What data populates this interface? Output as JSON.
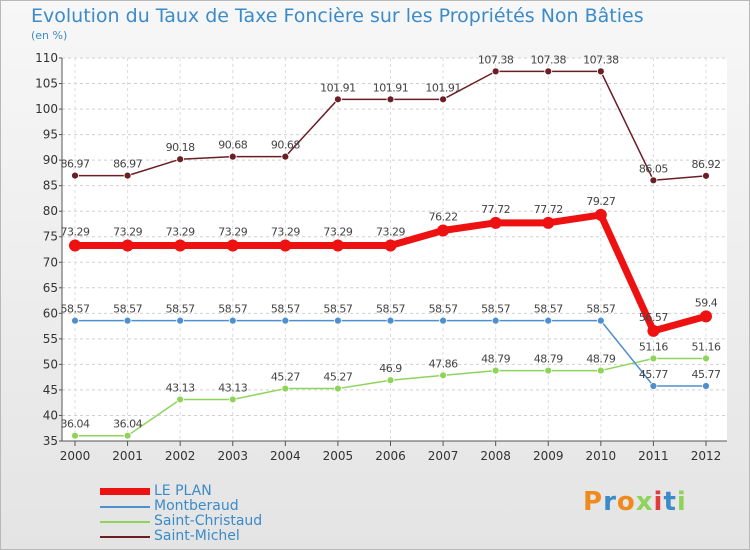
{
  "title": "Evolution du Taux de Taxe Foncière sur les Propriétés Non Bâties",
  "unit_label": "(en %)",
  "logo_text": "Proxiti",
  "chart_data": {
    "type": "line",
    "title": "Evolution du Taux de Taxe Foncière sur les Propriétés Non Bâties",
    "ylabel": "(en %)",
    "xlabel": "",
    "ylim": [
      35,
      110
    ],
    "yticks": [
      "35",
      "40",
      "45",
      "50",
      "55",
      "60",
      "65",
      "70",
      "75",
      "80",
      "85",
      "90",
      "95",
      "100",
      "105",
      "110"
    ],
    "x": [
      "2000",
      "2001",
      "2002",
      "2003",
      "2004",
      "2005",
      "2006",
      "2007",
      "2008",
      "2009",
      "2010",
      "2011",
      "2012"
    ],
    "grid": true,
    "legend_position": "bottom-left",
    "series": [
      {
        "name": "LE PLAN",
        "color": "#ee1111",
        "values": [
          73.29,
          73.29,
          73.29,
          73.29,
          73.29,
          73.29,
          73.29,
          76.22,
          77.72,
          77.72,
          79.27,
          56.57,
          59.4
        ],
        "labels": [
          "73.29",
          "73.29",
          "73.29",
          "73.29",
          "73.29",
          "73.29",
          "73.29",
          "76.22",
          "77.72",
          "77.72",
          "79.27",
          "56.57",
          "59.4"
        ]
      },
      {
        "name": "Montberaud",
        "color": "#4d8fcf",
        "values": [
          58.57,
          58.57,
          58.57,
          58.57,
          58.57,
          58.57,
          58.57,
          58.57,
          58.57,
          58.57,
          58.57,
          45.77,
          45.77
        ],
        "labels": [
          "58.57",
          "58.57",
          "58.57",
          "58.57",
          "58.57",
          "58.57",
          "58.57",
          "58.57",
          "58.57",
          "58.57",
          "58.57",
          "45.77",
          "45.77"
        ]
      },
      {
        "name": "Saint-Christaud",
        "color": "#8fd45a",
        "values": [
          36.04,
          36.04,
          43.13,
          43.13,
          45.27,
          45.27,
          46.9,
          47.86,
          48.79,
          48.79,
          48.79,
          51.16,
          51.16
        ],
        "labels": [
          "36.04",
          "36.04",
          "43.13",
          "43.13",
          "45.27",
          "45.27",
          "46.9",
          "47.86",
          "48.79",
          "48.79",
          "48.79",
          "51.16",
          "51.16"
        ]
      },
      {
        "name": "Saint-Michel",
        "color": "#6b1f24",
        "values": [
          86.97,
          86.97,
          90.18,
          90.68,
          90.68,
          101.91,
          101.91,
          101.91,
          107.38,
          107.38,
          107.38,
          86.05,
          86.92
        ],
        "labels": [
          "86.97",
          "86.97",
          "90.18",
          "90.68",
          "90.68",
          "101.91",
          "101.91",
          "101.91",
          "107.38",
          "107.38",
          "107.38",
          "86.05",
          "86.92"
        ]
      }
    ]
  }
}
